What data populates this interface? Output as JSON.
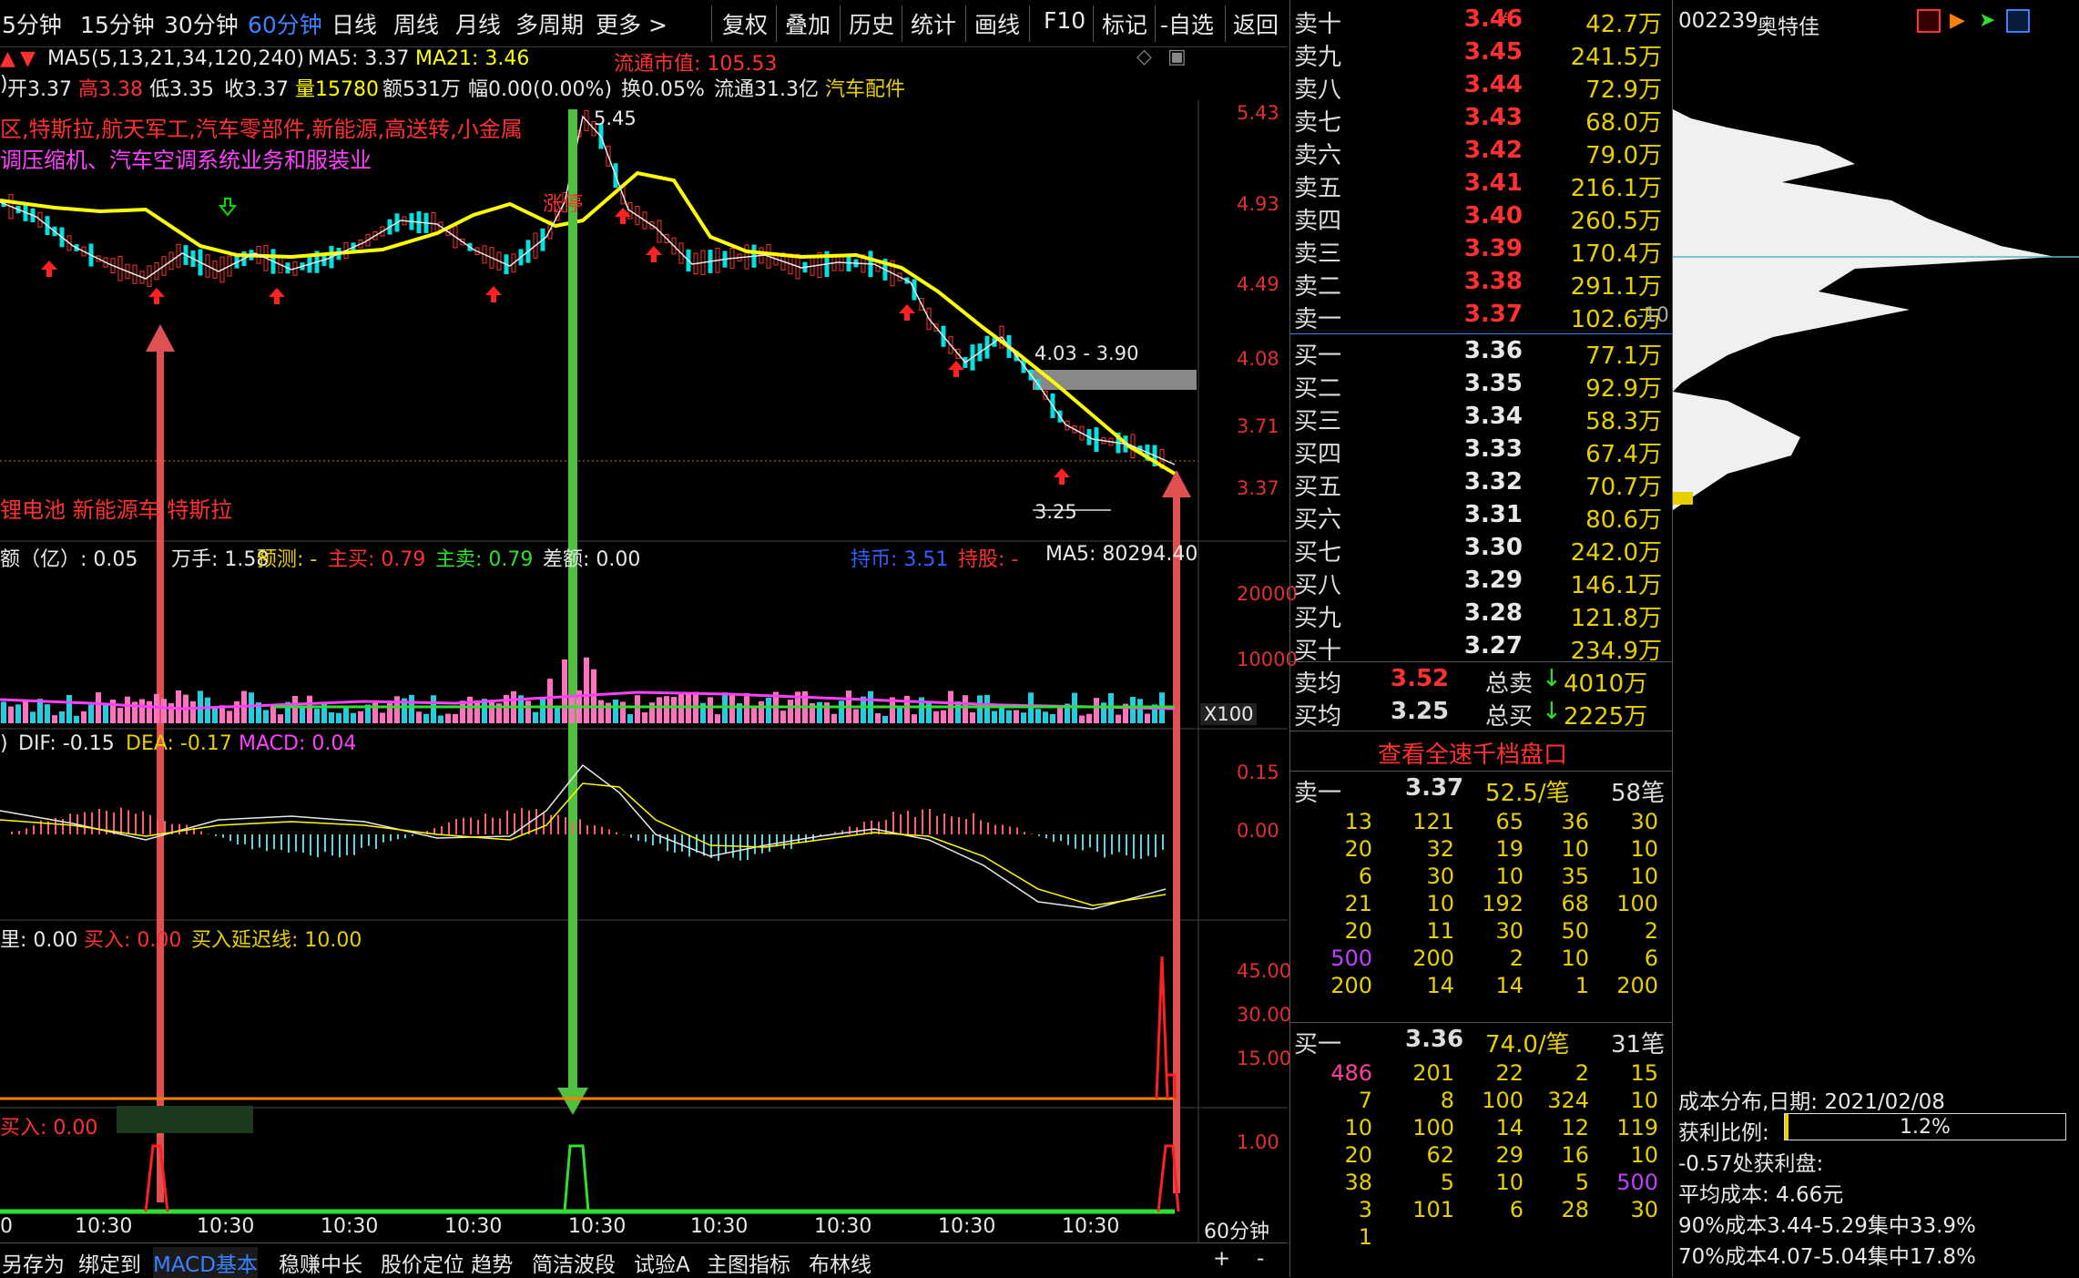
{
  "periods": [
    {
      "label": "5分钟",
      "active": false
    },
    {
      "label": "15分钟",
      "active": false
    },
    {
      "label": "30分钟",
      "active": false
    },
    {
      "label": "60分钟",
      "active": true
    },
    {
      "label": "日线",
      "active": false
    },
    {
      "label": "周线",
      "active": false
    },
    {
      "label": "月线",
      "active": false
    },
    {
      "label": "多周期",
      "active": false
    },
    {
      "label": "更多 >",
      "active": false
    }
  ],
  "tools": [
    "复权",
    "叠加",
    "历史",
    "统计",
    "画线",
    "F10",
    "标记",
    "-自选",
    "返回"
  ],
  "ma_legend": {
    "ma_text": "MA5(5,13,21,34,120,240)",
    "ma5": "MA5: 3.37",
    "ma21": "MA21: 3.46",
    "mktcap": "流通市值: 105.53"
  },
  "info_line": {
    "prefix": ")",
    "open": "开3.37",
    "high": "高3.38",
    "low": "低3.35",
    "close": "收3.37",
    "vol": "量15780",
    "amount": "额531万",
    "amp": "幅0.00(0.00%)",
    "turnover": "换0.05%",
    "float": "流通31.3亿",
    "industry": "汽车配件"
  },
  "concepts": {
    "line1": "区,特斯拉,航天军工,汽车零部件,新能源,高送转,小金属",
    "line2": "调压缩机、汽车空调系统业务和服装业",
    "line3": "锂电池 新能源车 特斯拉",
    "limit_up": "涨停"
  },
  "price_axis": [
    "5.43",
    "4.93",
    "4.49",
    "4.08",
    "3.71",
    "3.37"
  ],
  "annotations": {
    "high_label": "5.45",
    "range_label": "4.03 - 3.90",
    "low_label": "3.25"
  },
  "volume_panel": {
    "legend_a": "额（亿）: 0.05",
    "legend_b": "万手: 1.58",
    "legend_c": "预测: -",
    "zhumai": "主买: 0.79",
    "zhumai2": "主卖: 0.79",
    "chae": "差额: 0.00",
    "chibi": "持币: 3.51",
    "chigu": "持股: -",
    "ma5": "MA5: 80294.40",
    "axis": [
      "20000",
      "10000"
    ],
    "unit": "X100"
  },
  "macd_panel": {
    "prefix": ")",
    "dif": "DIF: -0.15",
    "dea": "DEA: -0.17",
    "macd": "MACD: 0.04",
    "axis": [
      "0.15",
      "0.00"
    ]
  },
  "signal_panel": {
    "li": "里: 0.00",
    "buy": "买入: 0.00",
    "delay": "买入延迟线: 10.00",
    "axis": [
      "45.00",
      "30.00",
      "15.00"
    ]
  },
  "signal2_panel": {
    "buy": "买入: 0.00",
    "axis": [
      "1.00"
    ]
  },
  "time_axis": [
    "10:30",
    "10:30",
    "10:30",
    "10:30",
    "10:30",
    "10:30",
    "10:30",
    "10:30",
    "10:30"
  ],
  "time_first": "0",
  "period_label": "60分钟",
  "zoom_plus": "+",
  "zoom_minus": "-",
  "bottom_tabs": [
    "另存为",
    "绑定到",
    "MACD基本",
    "稳赚中长",
    "股价定位 趋势",
    "简洁波段",
    "试验A",
    "主图指标",
    "布林线"
  ],
  "orderbook": {
    "asks": [
      {
        "name": "卖十",
        "price": "3.46",
        "vol": "42.7万"
      },
      {
        "name": "卖九",
        "price": "3.45",
        "vol": "241.5万"
      },
      {
        "name": "卖八",
        "price": "3.44",
        "vol": "72.9万"
      },
      {
        "name": "卖七",
        "price": "3.43",
        "vol": "68.0万"
      },
      {
        "name": "卖六",
        "price": "3.42",
        "vol": "79.0万"
      },
      {
        "name": "卖五",
        "price": "3.41",
        "vol": "216.1万"
      },
      {
        "name": "卖四",
        "price": "3.40",
        "vol": "260.5万"
      },
      {
        "name": "卖三",
        "price": "3.39",
        "vol": "170.4万"
      },
      {
        "name": "卖二",
        "price": "3.38",
        "vol": "291.1万"
      },
      {
        "name": "卖一",
        "price": "3.37",
        "vol": "102.6万"
      }
    ],
    "ask1_extra": "-10",
    "ask10_mark": "¥",
    "bids": [
      {
        "name": "买一",
        "price": "3.36",
        "vol": "77.1万"
      },
      {
        "name": "买二",
        "price": "3.35",
        "vol": "92.9万"
      },
      {
        "name": "买三",
        "price": "3.34",
        "vol": "58.3万"
      },
      {
        "name": "买四",
        "price": "3.33",
        "vol": "67.4万"
      },
      {
        "name": "买五",
        "price": "3.32",
        "vol": "70.7万"
      },
      {
        "name": "买六",
        "price": "3.31",
        "vol": "80.6万"
      },
      {
        "name": "买七",
        "price": "3.30",
        "vol": "242.0万"
      },
      {
        "name": "买八",
        "price": "3.29",
        "vol": "146.1万"
      },
      {
        "name": "买九",
        "price": "3.28",
        "vol": "121.8万"
      },
      {
        "name": "买十",
        "price": "3.27",
        "vol": "234.9万"
      }
    ],
    "avg_sell_label": "卖均",
    "avg_sell": "3.52",
    "total_sell_label": "总卖",
    "total_sell": "4010万",
    "avg_buy_label": "买均",
    "avg_buy": "3.25",
    "total_buy_label": "总买",
    "total_buy": "2225万",
    "depth_title": "查看全速千档盘口",
    "ask1_name": "卖一",
    "ask1_price": "3.37",
    "ask1_per": "52.5/笔",
    "ask1_count": "58笔",
    "ask_grid": [
      [
        "13",
        "121",
        "65",
        "36",
        "30"
      ],
      [
        "20",
        "32",
        "19",
        "10",
        "10"
      ],
      [
        "6",
        "30",
        "10",
        "35",
        "10"
      ],
      [
        "21",
        "10",
        "192",
        "68",
        "100"
      ],
      [
        "20",
        "11",
        "30",
        "50",
        "2"
      ],
      [
        "500",
        "200",
        "2",
        "10",
        "6"
      ],
      [
        "200",
        "14",
        "14",
        "1",
        "200"
      ]
    ],
    "bid1_name": "买一",
    "bid1_price": "3.36",
    "bid1_per": "74.0/笔",
    "bid1_count": "31笔",
    "bid_grid": [
      [
        "486",
        "201",
        "22",
        "2",
        "15"
      ],
      [
        "7",
        "8",
        "100",
        "324",
        "10"
      ],
      [
        "10",
        "100",
        "14",
        "12",
        "119"
      ],
      [
        "20",
        "62",
        "29",
        "16",
        "10"
      ],
      [
        "38",
        "5",
        "10",
        "5",
        "500"
      ],
      [
        "3",
        "101",
        "6",
        "28",
        "30"
      ],
      [
        "1",
        "",
        "",
        "",
        ""
      ]
    ]
  },
  "right_panel": {
    "code": "002239",
    "name": "奥特佳",
    "cost_date": "成本分布,日期: 2021/02/08",
    "profit_label": "获利比例:",
    "profit_value": "1.2%",
    "profit_ratio": 0.012,
    "profit_at": "-0.57处获利盘:",
    "avg_cost": "平均成本: 4.66元",
    "cost90": "90%成本3.44-5.29集中33.9%",
    "cost70": "70%成本4.07-5.04集中17.8%"
  },
  "colors": {
    "up": "#ff3030",
    "down": "#00e0e0",
    "ma_yellow": "#ffff00",
    "active": "#3b82ff",
    "vol_yellow": "#e8d000"
  }
}
